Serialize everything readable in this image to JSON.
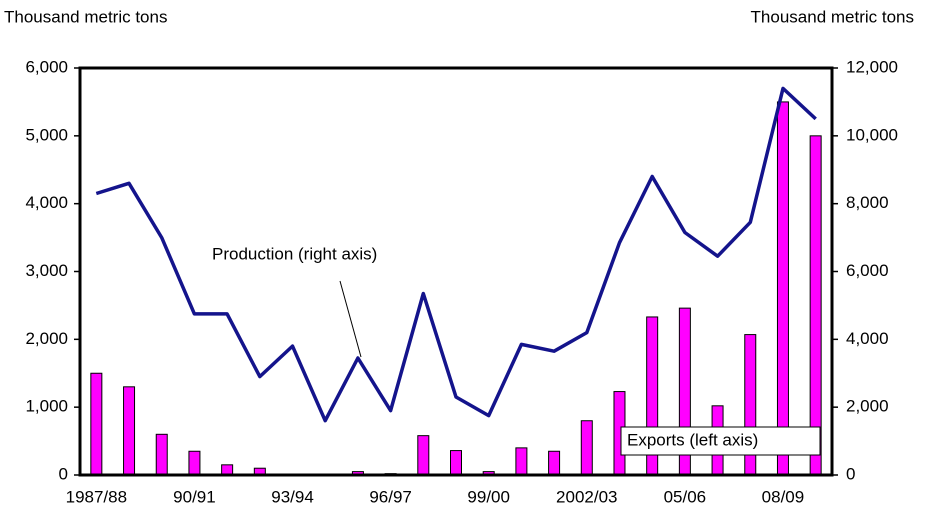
{
  "chart_data": {
    "type": "bar-line",
    "y_label": "Thousand metric tons",
    "y2_label": "Thousand metric tons",
    "categories": [
      "1987/88",
      null,
      null,
      "90/91",
      null,
      null,
      "93/94",
      null,
      null,
      "96/97",
      null,
      null,
      "99/00",
      null,
      null,
      "2002/03",
      null,
      null,
      "05/06",
      null,
      null,
      "08/09",
      null
    ],
    "series": [
      {
        "name": "Exports (left axis)",
        "type": "bar",
        "color": "#ff00ff",
        "values": [
          1500,
          1300,
          600,
          350,
          150,
          100,
          0,
          0,
          50,
          20,
          580,
          360,
          50,
          400,
          350,
          800,
          1230,
          2330,
          2460,
          1020,
          2070,
          5500,
          5000
        ]
      },
      {
        "name": "Production (right axis)",
        "type": "line",
        "axis": "y2",
        "color": "#14148c",
        "values": [
          8300,
          8600,
          7000,
          4750,
          4750,
          2900,
          3800,
          1600,
          3450,
          1900,
          5350,
          2300,
          1750,
          3850,
          3650,
          4200,
          6850,
          8800,
          7150,
          6450,
          7450,
          11400,
          10500
        ]
      }
    ],
    "ylim": [
      0,
      6000
    ],
    "yticks": [
      0,
      {
        "value": 1000,
        "label": "1,000"
      },
      {
        "value": 2000,
        "label": "2,000"
      },
      {
        "value": 3000,
        "label": "3,000"
      },
      {
        "value": 4000,
        "label": "4,000"
      },
      {
        "value": 5000,
        "label": "5,000"
      },
      {
        "value": 6000,
        "label": "6,000"
      }
    ],
    "y2lim": [
      0,
      12000
    ],
    "y2ticks": [
      0,
      {
        "value": 2000,
        "label": "2,000"
      },
      {
        "value": 4000,
        "label": "4,000"
      },
      {
        "value": 6000,
        "label": "6,000"
      },
      {
        "value": 8000,
        "label": "8,000"
      },
      {
        "value": 10000,
        "label": "10,000"
      },
      {
        "value": 12000,
        "label": "12,000"
      }
    ]
  }
}
